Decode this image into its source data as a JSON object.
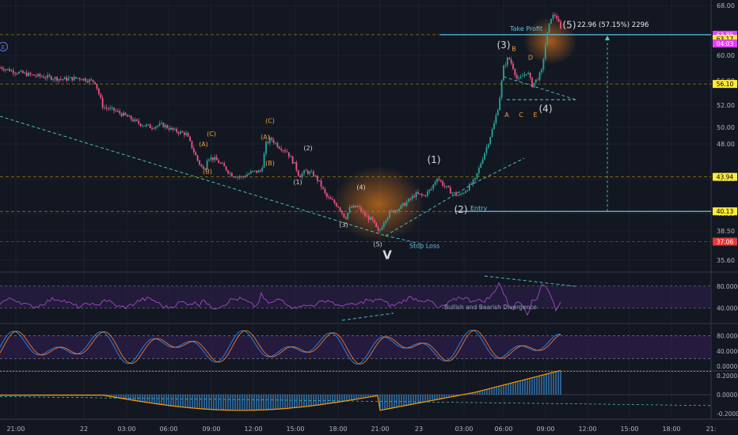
{
  "colors": {
    "background": "#131722",
    "up": "#26a69a",
    "down": "#ef5384",
    "grid": "#1e222d",
    "divider": "#363a45",
    "hline": "#c8a200",
    "stop": "#e53935",
    "tp": "#5ec3e6",
    "wave_label": "#d8d8d8",
    "sub_label": "#f0a03c",
    "rsi": "#a14bc7",
    "stoch_k": "#2a8cf0",
    "stoch_d": "#f07a2a",
    "histogram": "#42a5f5",
    "signal": "#ff9800",
    "band": "#2d1e4a",
    "trendline": "#4dd0c4",
    "divergence": "#e0e050"
  },
  "chart_data": {
    "type": "line",
    "description_source": "candlestick price chart with Elliott wave annotations and three indicator panes",
    "x_ticks": [
      "21:00",
      "22",
      "03:00",
      "06:00",
      "09:00",
      "12:00",
      "15:00",
      "18:00",
      "21:00",
      "23",
      "03:00",
      "06:00",
      "09:00",
      "12:00",
      "15:00",
      "18:00",
      "21:"
    ],
    "price_axis": {
      "ticks": [
        "68.00",
        "60.00",
        "56.00",
        "52.00",
        "50.00",
        "48.00",
        "44.00",
        "40.00",
        "38.50",
        "35.60"
      ],
      "ylim": [
        35,
        68.5
      ],
      "scale": "log"
    },
    "levels": [
      {
        "value": 63.85,
        "label": "63.85",
        "style": "dashed",
        "color": "#c8a200",
        "badge": "#e040fb"
      },
      {
        "value": 63.17,
        "label": "63.17",
        "style": "badge-only",
        "badge": "#ffeb3b"
      },
      {
        "value": 56.1,
        "label": "56.10",
        "style": "dashed",
        "badge": "#ffeb3b"
      },
      {
        "value": 43.94,
        "label": "43.94",
        "style": "dashed",
        "badge": "#ffeb3b"
      },
      {
        "value": 40.13,
        "label": "40.13",
        "style": "dashed",
        "badge": "#ffeb3b"
      },
      {
        "value": 37.06,
        "label": "37.06",
        "style": "dashed-red",
        "badge": "#e53935"
      }
    ],
    "countdown_badge": "04:03",
    "take_profit": {
      "label": "Take Profit",
      "value": 63.85
    },
    "entry": {
      "label": "Entry",
      "value": 40.13
    },
    "stop_loss": {
      "label": "Stop Loss",
      "value": 37.06
    },
    "measure_label": "22.96 (57.15%) 2296",
    "price_path": [
      [
        0,
        58.6
      ],
      [
        20,
        57.9
      ],
      [
        40,
        57.4
      ],
      [
        60,
        57.1
      ],
      [
        80,
        56.8
      ],
      [
        100,
        57.0
      ],
      [
        120,
        56.4
      ],
      [
        130,
        52.8
      ],
      [
        145,
        52.3
      ],
      [
        160,
        51.5
      ],
      [
        175,
        50.6
      ],
      [
        190,
        50.1
      ],
      [
        205,
        50.4
      ],
      [
        220,
        49.6
      ],
      [
        235,
        49.2
      ],
      [
        250,
        45.8
      ],
      [
        258,
        44.6
      ],
      [
        262,
        46.3
      ],
      [
        272,
        46.0
      ],
      [
        282,
        45.2
      ],
      [
        292,
        44.2
      ],
      [
        305,
        43.9
      ],
      [
        318,
        44.5
      ],
      [
        330,
        44.6
      ],
      [
        336,
        47.9
      ],
      [
        342,
        48.6
      ],
      [
        352,
        47.6
      ],
      [
        362,
        47.0
      ],
      [
        372,
        45.4
      ],
      [
        378,
        44.0
      ],
      [
        386,
        44.6
      ],
      [
        396,
        44.2
      ],
      [
        404,
        43.2
      ],
      [
        412,
        41.7
      ],
      [
        420,
        41.2
      ],
      [
        428,
        40.6
      ],
      [
        436,
        39.4
      ],
      [
        442,
        40.5
      ],
      [
        452,
        40.6
      ],
      [
        462,
        39.6
      ],
      [
        470,
        39.2
      ],
      [
        478,
        37.9
      ],
      [
        486,
        39.3
      ],
      [
        494,
        40.1
      ],
      [
        505,
        40.5
      ],
      [
        515,
        41.2
      ],
      [
        525,
        42.0
      ],
      [
        535,
        41.8
      ],
      [
        545,
        42.6
      ],
      [
        552,
        43.9
      ],
      [
        560,
        43.0
      ],
      [
        570,
        42.2
      ],
      [
        580,
        41.8
      ],
      [
        590,
        42.6
      ],
      [
        600,
        43.6
      ],
      [
        608,
        45.8
      ],
      [
        616,
        47.9
      ],
      [
        624,
        50.5
      ],
      [
        630,
        53.2
      ],
      [
        636,
        58.6
      ],
      [
        642,
        60.2
      ],
      [
        648,
        58.6
      ],
      [
        654,
        56.5
      ],
      [
        660,
        57.3
      ],
      [
        666,
        58.0
      ],
      [
        672,
        55.9
      ],
      [
        678,
        56.8
      ],
      [
        684,
        58.0
      ],
      [
        690,
        63.2
      ],
      [
        696,
        66.9
      ],
      [
        702,
        67.3
      ],
      [
        708,
        64.7
      ]
    ],
    "waves": {
      "primary": [
        {
          "label": "(1)",
          "x": 548,
          "value": 45.6
        },
        {
          "label": "(2)",
          "x": 582,
          "value": 40.0
        },
        {
          "label": "(3)",
          "x": 636,
          "value": 61.6
        },
        {
          "label": "(4)",
          "x": 689,
          "value": 52.1
        },
        {
          "label": "(5)",
          "x": 719,
          "value": 65.0
        },
        {
          "label": "V",
          "x": 489,
          "value": 35.4
        }
      ],
      "secondary": [
        {
          "label": "(1)",
          "x": 376,
          "value": 43.1
        },
        {
          "label": "(2)",
          "x": 389,
          "value": 47.1
        },
        {
          "label": "(3)",
          "x": 434,
          "value": 38.5
        },
        {
          "label": "(4)",
          "x": 456,
          "value": 42.5
        },
        {
          "label": "(5)",
          "x": 477,
          "value": 36.6
        }
      ],
      "corrective": [
        {
          "label": "(A)",
          "x": 257,
          "value": 47.6
        },
        {
          "label": "(B)",
          "x": 262,
          "value": 44.3
        },
        {
          "label": "(C)",
          "x": 267,
          "value": 48.9
        },
        {
          "label": "(A)",
          "x": 335,
          "value": 48.5
        },
        {
          "label": "(B)",
          "x": 341,
          "value": 45.3
        },
        {
          "label": "(C)",
          "x": 341,
          "value": 50.6
        },
        {
          "label": "A",
          "x": 640,
          "value": 51.4
        },
        {
          "label": "B",
          "x": 649,
          "value": 61.2
        },
        {
          "label": "C",
          "x": 658,
          "value": 51.4
        },
        {
          "label": "D",
          "x": 670,
          "value": 59.8
        },
        {
          "label": "E",
          "x": 676,
          "value": 51.4
        }
      ]
    },
    "indicators": [
      {
        "name": "RSI",
        "ticks": [
          "80.0000",
          "40.0000"
        ],
        "annotation": "Bullish and Bearish Divergence"
      },
      {
        "name": "Stochastic",
        "ticks": [
          "80.0000",
          "40.0000",
          "0.0000"
        ]
      },
      {
        "name": "Histogram",
        "ticks": [
          "0.2000",
          "0.0000",
          "-0.2000"
        ]
      }
    ],
    "legend_badge": "E"
  }
}
